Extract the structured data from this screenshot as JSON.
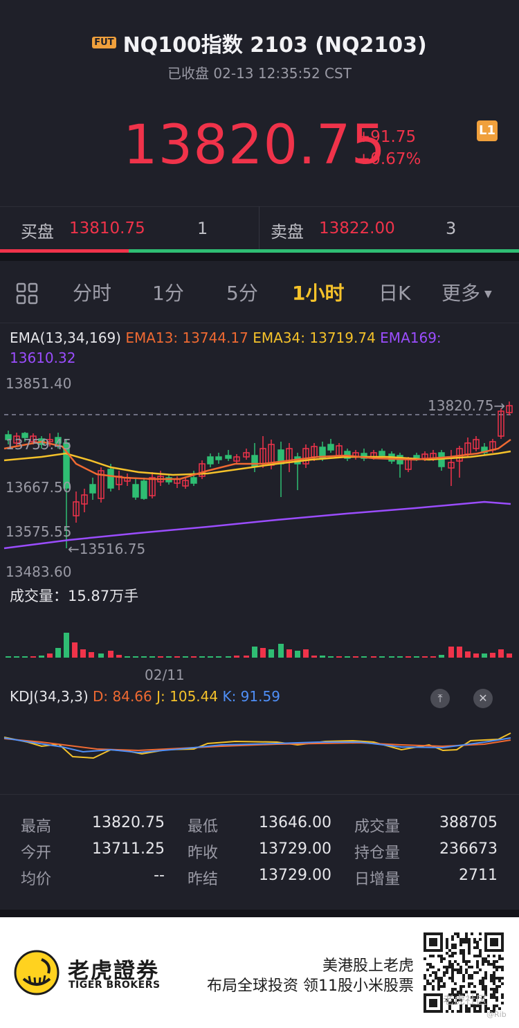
{
  "header": {
    "badge": "FUT",
    "title": "NQ100指数 2103 (NQ2103)",
    "subtitle": "已收盘 02-13 12:35:52 CST"
  },
  "quote": {
    "price": "13820.75",
    "change": "+91.75",
    "change_pct": "+0.67%",
    "level_badge": "L1"
  },
  "bid_ask": {
    "bid_label": "买盘",
    "bid_price": "13810.75",
    "bid_size": "1",
    "ask_label": "卖盘",
    "ask_price": "13822.00",
    "ask_size": "3"
  },
  "tabs": {
    "items": [
      "分时",
      "1分",
      "5分",
      "1小时",
      "日K",
      "更多"
    ],
    "active": "1小时"
  },
  "ema": {
    "title": "EMA(13,34,169)",
    "ema13": "EMA13: 13744.17",
    "ema34": "EMA34: 13719.74",
    "ema169": "EMA169:",
    "ema169_value": "13610.32"
  },
  "price_axis": [
    "13851.40",
    "13759.45",
    "13667.50",
    "13575.55",
    "13483.60"
  ],
  "last_price_marker": "13820.75→",
  "low_marker": "←13516.75",
  "volume": {
    "label": "成交量",
    "value": "：15.87万手"
  },
  "date_label": "02/11",
  "kdj": {
    "title": "KDJ(34,3,3)",
    "d": "D: 84.66",
    "j": "J: 105.44",
    "k": "K: 91.59"
  },
  "stats": {
    "high_label": "最高",
    "high": "13820.75",
    "low_label": "最低",
    "low": "13646.00",
    "vol_label": "成交量",
    "vol": "388705",
    "open_label": "今开",
    "open": "13711.25",
    "prev_close_label": "昨收",
    "prev_close": "13729.00",
    "oi_label": "持仓量",
    "oi": "236673",
    "avg_label": "均价",
    "avg": "--",
    "prev_settle_label": "昨结",
    "prev_settle": "13729.00",
    "daily_add_label": "日增量",
    "daily_add": "2711"
  },
  "footer": {
    "brand_cn": "老虎證券",
    "brand_en": "TIGER BROKERS",
    "slogan1": "美港股上老虎",
    "slogan2": "布局全球投资 领11股小米股票",
    "watermark1": "老虎社区",
    "watermark2": "@Rib"
  },
  "colors": {
    "up": "#f0334a",
    "down": "#2fbd73",
    "accent": "#f5c22a",
    "ema13": "#f06a32",
    "ema34": "#f5c22a",
    "ema169": "#9b4dff",
    "kdj_k": "#4f8ff7"
  }
}
